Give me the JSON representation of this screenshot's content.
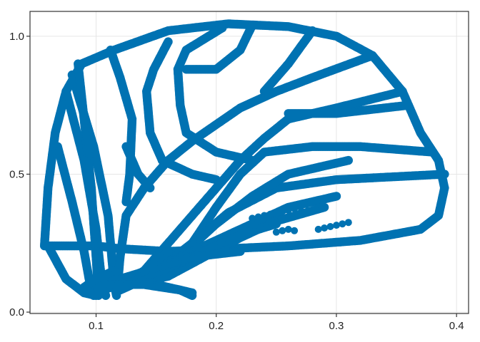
{
  "chart_data": {
    "type": "scatter",
    "title": "",
    "xlabel": "",
    "ylabel": "",
    "xlim": [
      0.045,
      0.41
    ],
    "ylim": [
      -0.005,
      1.09
    ],
    "xticks": [
      0.1,
      0.2,
      0.3,
      0.4
    ],
    "xtick_labels": [
      "0.1",
      "0.2",
      "0.3",
      "0.4"
    ],
    "yticks": [
      0.0,
      0.5,
      1.0
    ],
    "ytick_labels": [
      "0.0",
      "0.5",
      "1.0"
    ],
    "grid": true,
    "legend": "none",
    "marker_color": "#0072B2",
    "series": [
      {
        "strokes": [
          [
            [
              0.057,
              0.24
            ],
            [
              0.06,
              0.45
            ],
            [
              0.066,
              0.65
            ],
            [
              0.075,
              0.8
            ],
            [
              0.088,
              0.9
            ],
            [
              0.115,
              0.95
            ],
            [
              0.16,
              1.02
            ],
            [
              0.21,
              1.045
            ],
            [
              0.26,
              1.035
            ],
            [
              0.3,
              1.0
            ],
            [
              0.33,
              0.93
            ],
            [
              0.355,
              0.8
            ],
            [
              0.37,
              0.65
            ],
            [
              0.385,
              0.55
            ],
            [
              0.39,
              0.45
            ],
            [
              0.385,
              0.35
            ],
            [
              0.37,
              0.3
            ],
            [
              0.32,
              0.26
            ],
            [
              0.26,
              0.24
            ],
            [
              0.21,
              0.23
            ],
            [
              0.16,
              0.22
            ],
            [
              0.12,
              0.23
            ],
            [
              0.1,
              0.24
            ],
            [
              0.08,
              0.24
            ],
            [
              0.058,
              0.24
            ]
          ],
          [
            [
              0.06,
              0.24
            ],
            [
              0.075,
              0.12
            ],
            [
              0.09,
              0.07
            ],
            [
              0.1,
              0.06
            ]
          ],
          [
            [
              0.068,
              0.6
            ],
            [
              0.08,
              0.4
            ],
            [
              0.09,
              0.22
            ],
            [
              0.095,
              0.1
            ],
            [
              0.098,
              0.06
            ]
          ],
          [
            [
              0.075,
              0.8
            ],
            [
              0.09,
              0.55
            ],
            [
              0.1,
              0.3
            ],
            [
              0.105,
              0.1
            ],
            [
              0.108,
              0.06
            ]
          ],
          [
            [
              0.08,
              0.86
            ],
            [
              0.098,
              0.6
            ],
            [
              0.11,
              0.35
            ],
            [
              0.115,
              0.1
            ],
            [
              0.117,
              0.06
            ]
          ],
          [
            [
              0.085,
              0.9
            ],
            [
              0.09,
              0.7
            ],
            [
              0.096,
              0.45
            ],
            [
              0.1,
              0.2
            ],
            [
              0.102,
              0.06
            ]
          ],
          [
            [
              0.112,
              0.95
            ],
            [
              0.12,
              0.85
            ],
            [
              0.13,
              0.7
            ],
            [
              0.128,
              0.5
            ],
            [
              0.125,
              0.4
            ]
          ],
          [
            [
              0.125,
              0.6
            ],
            [
              0.135,
              0.5
            ],
            [
              0.145,
              0.45
            ]
          ],
          [
            [
              0.16,
              0.98
            ],
            [
              0.148,
              0.88
            ],
            [
              0.142,
              0.8
            ],
            [
              0.145,
              0.65
            ],
            [
              0.155,
              0.55
            ],
            [
              0.18,
              0.5
            ],
            [
              0.2,
              0.48
            ]
          ],
          [
            [
              0.205,
              1.03
            ],
            [
              0.175,
              0.95
            ],
            [
              0.168,
              0.88
            ],
            [
              0.17,
              0.75
            ],
            [
              0.175,
              0.65
            ],
            [
              0.2,
              0.58
            ],
            [
              0.23,
              0.55
            ]
          ],
          [
            [
              0.23,
              1.04
            ],
            [
              0.22,
              0.95
            ],
            [
              0.2,
              0.88
            ],
            [
              0.175,
              0.88
            ]
          ],
          [
            [
              0.28,
              1.02
            ],
            [
              0.26,
              0.9
            ],
            [
              0.25,
              0.85
            ],
            [
              0.24,
              0.8
            ]
          ],
          [
            [
              0.33,
              0.93
            ],
            [
              0.28,
              0.85
            ],
            [
              0.25,
              0.8
            ],
            [
              0.22,
              0.74
            ],
            [
              0.2,
              0.68
            ],
            [
              0.18,
              0.62
            ],
            [
              0.16,
              0.55
            ],
            [
              0.14,
              0.45
            ],
            [
              0.125,
              0.35
            ],
            [
              0.12,
              0.2
            ],
            [
              0.118,
              0.1
            ]
          ],
          [
            [
              0.355,
              0.8
            ],
            [
              0.3,
              0.74
            ],
            [
              0.26,
              0.7
            ],
            [
              0.24,
              0.63
            ],
            [
              0.22,
              0.55
            ],
            [
              0.2,
              0.45
            ],
            [
              0.17,
              0.3
            ],
            [
              0.15,
              0.2
            ],
            [
              0.13,
              0.1
            ],
            [
              0.12,
              0.08
            ]
          ],
          [
            [
              0.36,
              0.75
            ],
            [
              0.3,
              0.72
            ],
            [
              0.26,
              0.72
            ]
          ],
          [
            [
              0.38,
              0.58
            ],
            [
              0.32,
              0.6
            ],
            [
              0.28,
              0.6
            ],
            [
              0.24,
              0.58
            ],
            [
              0.22,
              0.5
            ],
            [
              0.2,
              0.38
            ],
            [
              0.18,
              0.25
            ],
            [
              0.15,
              0.14
            ],
            [
              0.125,
              0.09
            ]
          ],
          [
            [
              0.39,
              0.5
            ],
            [
              0.3,
              0.48
            ],
            [
              0.25,
              0.45
            ],
            [
              0.21,
              0.36
            ],
            [
              0.18,
              0.25
            ],
            [
              0.15,
              0.15
            ],
            [
              0.13,
              0.1
            ]
          ],
          [
            [
              0.31,
              0.55
            ],
            [
              0.26,
              0.5
            ],
            [
              0.23,
              0.42
            ],
            [
              0.2,
              0.32
            ],
            [
              0.17,
              0.2
            ],
            [
              0.14,
              0.12
            ]
          ],
          [
            [
              0.3,
              0.42
            ],
            [
              0.26,
              0.38
            ],
            [
              0.22,
              0.3
            ],
            [
              0.18,
              0.22
            ],
            [
              0.15,
              0.14
            ],
            [
              0.12,
              0.1
            ]
          ],
          [
            [
              0.29,
              0.38
            ],
            [
              0.25,
              0.33
            ],
            [
              0.22,
              0.27
            ],
            [
              0.19,
              0.2
            ],
            [
              0.16,
              0.13
            ],
            [
              0.13,
              0.1
            ]
          ],
          [
            [
              0.25,
              0.32
            ],
            [
              0.22,
              0.28
            ],
            [
              0.19,
              0.22
            ],
            [
              0.16,
              0.16
            ],
            [
              0.13,
              0.11
            ]
          ],
          [
            [
              0.22,
              0.22
            ],
            [
              0.18,
              0.2
            ],
            [
              0.15,
              0.16
            ],
            [
              0.12,
              0.12
            ],
            [
              0.1,
              0.1
            ]
          ],
          [
            [
              0.16,
              0.22
            ],
            [
              0.14,
              0.15
            ],
            [
              0.12,
              0.1
            ],
            [
              0.105,
              0.08
            ]
          ],
          [
            [
              0.13,
              0.12
            ],
            [
              0.16,
              0.09
            ],
            [
              0.18,
              0.07
            ]
          ],
          [
            [
              0.11,
              0.1
            ],
            [
              0.14,
              0.1
            ],
            [
              0.17,
              0.08
            ],
            [
              0.18,
              0.06
            ]
          ],
          [
            [
              0.115,
              0.15
            ],
            [
              0.1,
              0.12
            ],
            [
              0.09,
              0.09
            ],
            [
              0.095,
              0.07
            ]
          ]
        ],
        "points": [
          [
            0.305,
            0.32
          ],
          [
            0.31,
            0.325
          ],
          [
            0.3,
            0.315
          ],
          [
            0.295,
            0.31
          ],
          [
            0.29,
            0.305
          ],
          [
            0.285,
            0.3
          ],
          [
            0.265,
            0.295
          ],
          [
            0.26,
            0.3
          ],
          [
            0.255,
            0.295
          ],
          [
            0.25,
            0.29
          ],
          [
            0.23,
            0.34
          ],
          [
            0.235,
            0.345
          ],
          [
            0.24,
            0.35
          ],
          [
            0.245,
            0.355
          ],
          [
            0.25,
            0.36
          ],
          [
            0.255,
            0.365
          ],
          [
            0.26,
            0.37
          ],
          [
            0.265,
            0.375
          ],
          [
            0.27,
            0.38
          ],
          [
            0.275,
            0.39
          ]
        ]
      }
    ]
  }
}
